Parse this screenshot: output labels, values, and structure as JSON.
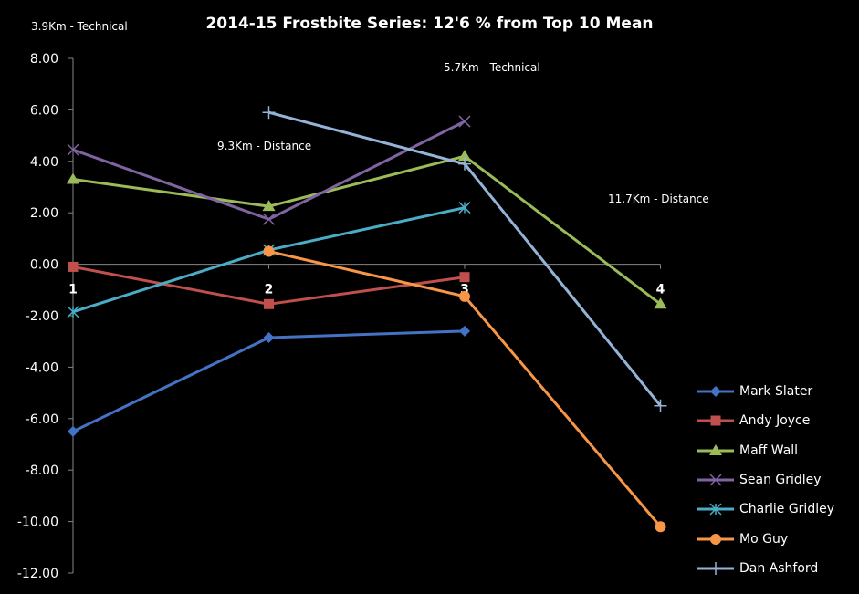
{
  "title": "2014-15 Frostbite Series: 12'6 % from Top 10 Mean",
  "annotations": [
    {
      "id": "a1",
      "text": "3.9Km - Technical"
    },
    {
      "id": "a2",
      "text": "9.3Km - Distance"
    },
    {
      "id": "a3",
      "text": "5.7Km - Technical"
    },
    {
      "id": "a4",
      "text": "11.7Km - Distance"
    }
  ],
  "chart_data": {
    "type": "line",
    "title": "2014-15 Frostbite Series: 12'6 % from Top 10 Mean",
    "x": [
      1,
      2,
      3,
      4
    ],
    "x_tick_labels": [
      "1",
      "2",
      "3",
      "4"
    ],
    "ylim": [
      -12,
      8
    ],
    "y_tick_labels": [
      "8.00",
      "6.00",
      "4.00",
      "2.00",
      "0.00",
      "-2.00",
      "-4.00",
      "-6.00",
      "-8.00",
      "-10.00",
      "-12.00"
    ],
    "legend_position": "bottom-right",
    "grid": false,
    "series": [
      {
        "name": "Mark Slater",
        "color": "#4472C4",
        "marker": "diamond",
        "values": [
          -6.5,
          -2.85,
          -2.6,
          null
        ]
      },
      {
        "name": "Andy Joyce",
        "color": "#C0504D",
        "marker": "square",
        "values": [
          -0.1,
          -1.55,
          -0.5,
          null
        ]
      },
      {
        "name": "Maff Wall",
        "color": "#9BBB59",
        "marker": "triangle",
        "values": [
          3.3,
          2.25,
          4.2,
          -1.55
        ]
      },
      {
        "name": "Sean Gridley",
        "color": "#8064A2",
        "marker": "x",
        "values": [
          4.45,
          1.75,
          5.55,
          null
        ]
      },
      {
        "name": "Charlie Gridley",
        "color": "#4BACC6",
        "marker": "star",
        "values": [
          -1.85,
          0.55,
          2.2,
          null
        ]
      },
      {
        "name": "Mo Guy",
        "color": "#F79646",
        "marker": "circle",
        "values": [
          null,
          0.5,
          -1.25,
          -10.2
        ]
      },
      {
        "name": "Dan Ashford",
        "color": "#95B3D7",
        "marker": "plus",
        "values": [
          null,
          5.9,
          3.9,
          -5.5
        ]
      }
    ]
  }
}
